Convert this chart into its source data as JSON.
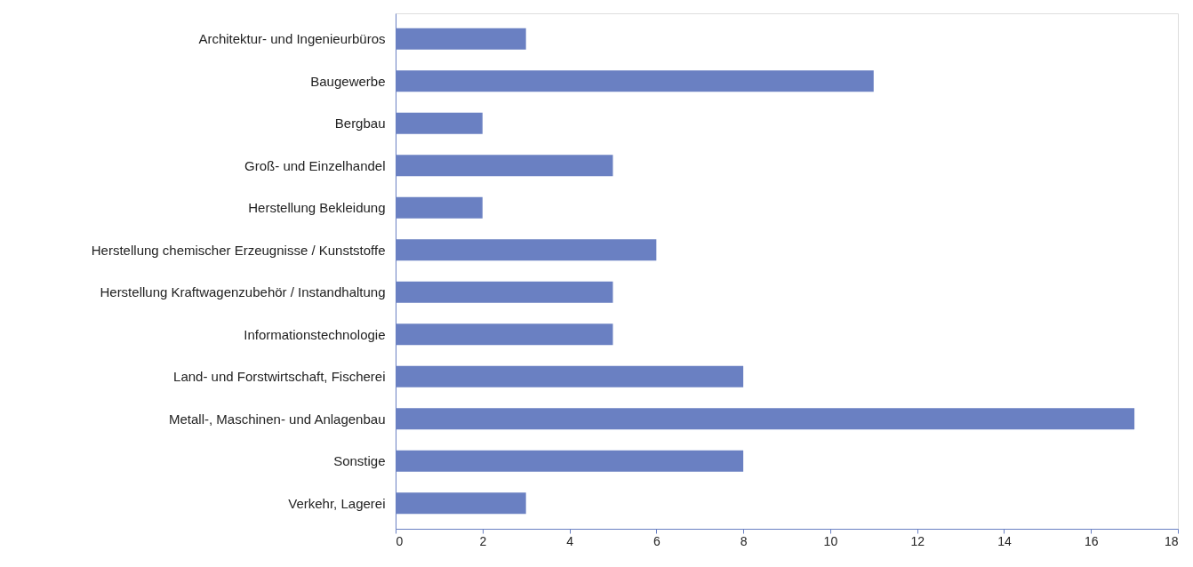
{
  "chart_data": {
    "type": "bar",
    "orientation": "horizontal",
    "categories": [
      "Architektur- und Ingenieurbüros",
      "Baugewerbe",
      "Bergbau",
      "Groß- und Einzelhandel",
      "Herstellung Bekleidung",
      "Herstellung chemischer Erzeugnisse / Kunststoffe",
      "Herstellung Kraftwagenzubehör / Instandhaltung",
      "Informationstechnologie",
      "Land- und Forstwirtschaft, Fischerei",
      "Metall-, Maschinen- und Anlagenbau",
      "Sonstige",
      "Verkehr, Lagerei"
    ],
    "values": [
      3,
      11,
      2,
      5,
      2,
      6,
      5,
      5,
      8,
      17,
      8,
      3
    ],
    "color": "#6a80c2",
    "xlim": [
      0,
      18
    ],
    "xticks": [
      0,
      2,
      4,
      6,
      8,
      10,
      12,
      14,
      16,
      18
    ],
    "grid": false
  }
}
